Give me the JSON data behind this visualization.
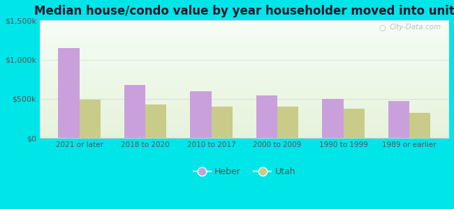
{
  "title": "Median house/condo value by year householder moved into unit",
  "categories": [
    "2021 or later",
    "2018 to 2020",
    "2010 to 2017",
    "2000 to 2009",
    "1990 to 1999",
    "1989 or earlier"
  ],
  "heber_values": [
    1150000,
    680000,
    595000,
    545000,
    500000,
    475000
  ],
  "utah_values": [
    490000,
    430000,
    405000,
    400000,
    375000,
    325000
  ],
  "heber_color": "#c9a0dc",
  "utah_color": "#c8cc88",
  "ylim": [
    0,
    1500000
  ],
  "yticks": [
    0,
    500000,
    1000000,
    1500000
  ],
  "ytick_labels": [
    "$0",
    "$500k",
    "$1,000k",
    "$1,500k"
  ],
  "background_outer": "#00e5e8",
  "watermark": "City-Data.com",
  "legend_heber": "Heber",
  "legend_utah": "Utah",
  "bar_width": 0.32,
  "title_fontsize": 12,
  "title_color": "#1a1a2e",
  "tick_color": "#555555",
  "grid_color": "#cccccc"
}
